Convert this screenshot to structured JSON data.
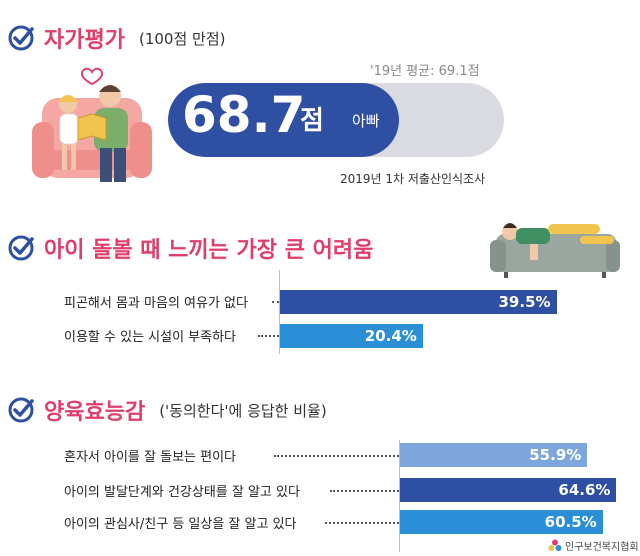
{
  "section1": {
    "title": "자가평가",
    "subtitle": "(100점 만점)",
    "score": "68.7",
    "score_unit": "점",
    "score_who": "아빠",
    "score_value": 68.7,
    "score_max": 100,
    "avg_text": "'19년 평균: 69.1점",
    "source": "2019년 1차 저출산인식조사"
  },
  "section2": {
    "title": "아이 돌볼 때 느끼는 가장 큰 어려움"
  },
  "section3": {
    "title": "양육효능감",
    "subtitle": "('동의한다'에 응답한 비율)"
  },
  "logo_text": "인구보건복지협회",
  "colors": {
    "accent": "#e03d6a",
    "dark_blue": "#2f4fa3",
    "light_blue": "#7ea6dc",
    "sky_blue": "#2a8fd6"
  },
  "chart_data": [
    {
      "type": "bar",
      "orientation": "horizontal",
      "categories": [
        "피곤해서 몸과 마음의 여유가 없다",
        "이용할 수 있는 시설이 부족하다"
      ],
      "values": [
        39.5,
        20.4
      ],
      "value_labels": [
        "39.5%",
        "20.4%"
      ],
      "colors": [
        "#2f4fa3",
        "#2a8fd6"
      ],
      "xlim": [
        0,
        100
      ]
    },
    {
      "type": "bar",
      "orientation": "horizontal",
      "categories": [
        "혼자서 아이를 잘 돌보는 편이다",
        "아이의 발달단계와 건강상태를 잘 알고 있다",
        "아이의 관심사/친구 등 일상을 잘 알고 있다"
      ],
      "values": [
        55.9,
        64.6,
        60.5
      ],
      "value_labels": [
        "55.9%",
        "64.6%",
        "60.5%"
      ],
      "colors": [
        "#7ea6dc",
        "#2f4fa3",
        "#2a8fd6"
      ],
      "xlim": [
        0,
        100
      ]
    }
  ]
}
